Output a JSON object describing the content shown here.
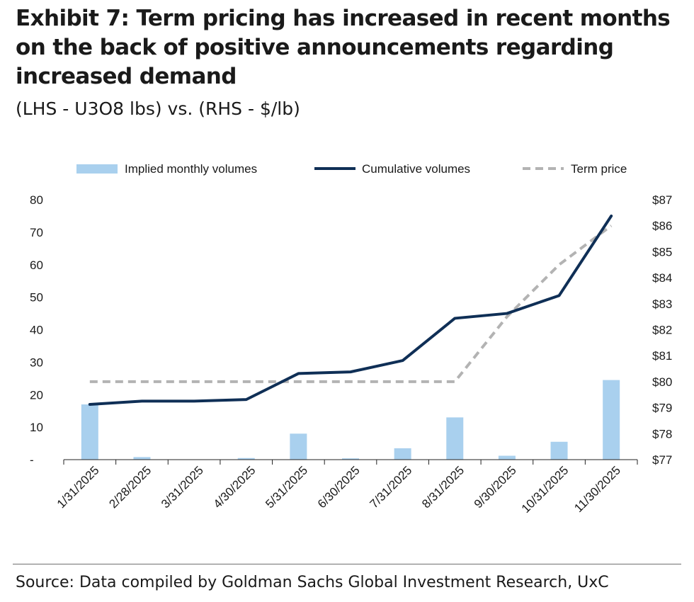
{
  "title": "Exhibit 7: Term pricing has increased in recent months on the back of positive announcements regarding increased demand",
  "subtitle": "(LHS - U3O8 lbs) vs. (RHS - $/lb)",
  "source": "Source: Data compiled by Goldman Sachs Global Investment Research, UxC",
  "colors": {
    "bar": "#a9d0ee",
    "cumulative": "#0f2f56",
    "term_price": "#b3b3b3",
    "axis": "#222222"
  },
  "chart_data": {
    "type": "bar",
    "title": "Exhibit 7: Term pricing has increased in recent months on the back of positive announcements regarding increased demand",
    "subtitle": "(LHS - U3O8 lbs) vs. (RHS - $/lb)",
    "categories": [
      "1/31/2025",
      "2/28/2025",
      "3/31/2025",
      "4/30/2025",
      "5/31/2025",
      "6/30/2025",
      "7/31/2025",
      "8/31/2025",
      "9/30/2025",
      "10/31/2025",
      "11/30/2025"
    ],
    "series": [
      {
        "name": "Implied monthly volumes",
        "type": "bar",
        "axis": "left",
        "values": [
          17,
          0.8,
          0,
          0.5,
          8,
          0.4,
          3.5,
          13,
          1.2,
          5.5,
          24.5
        ]
      },
      {
        "name": "Cumulative volumes",
        "type": "line",
        "axis": "left",
        "values": [
          17,
          18,
          18,
          18.5,
          26.5,
          27,
          30.5,
          43.5,
          45,
          50.5,
          75
        ]
      },
      {
        "name": "Term price",
        "type": "line",
        "style": "dashed",
        "axis": "right",
        "values": [
          80,
          80,
          80,
          80,
          80,
          80,
          80,
          80,
          82.5,
          84.5,
          86
        ]
      }
    ],
    "left_axis": {
      "ylim": [
        0,
        80
      ],
      "ticks": [
        0,
        10,
        20,
        30,
        40,
        50,
        60,
        70,
        80
      ],
      "tick_labels": [
        "-",
        "10",
        "20",
        "30",
        "40",
        "50",
        "60",
        "70",
        "80"
      ]
    },
    "right_axis": {
      "ylim": [
        77,
        87
      ],
      "ticks": [
        77,
        78,
        79,
        80,
        81,
        82,
        83,
        84,
        85,
        86,
        87
      ],
      "tick_labels": [
        "$77",
        "$78",
        "$79",
        "$80",
        "$81",
        "$82",
        "$83",
        "$84",
        "$85",
        "$86",
        "$87"
      ]
    },
    "legend": {
      "position": "top",
      "entries": [
        "Implied monthly volumes",
        "Cumulative volumes",
        "Term price"
      ]
    },
    "grid": false
  }
}
